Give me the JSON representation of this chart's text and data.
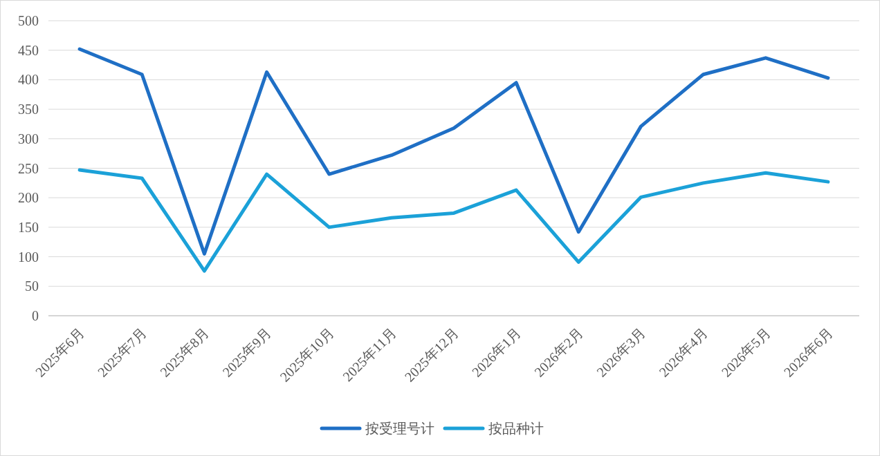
{
  "chart_data": {
    "type": "line",
    "categories": [
      "2025年6月",
      "2025年7月",
      "2025年8月",
      "2025年9月",
      "2025年10月",
      "2025年11月",
      "2025年12月",
      "2026年1月",
      "2026年2月",
      "2026年3月",
      "2026年4月",
      "2026年5月",
      "2026年6月"
    ],
    "series": [
      {
        "name": "按受理号计",
        "color": "#1f6fc5",
        "values": [
          452,
          409,
          105,
          413,
          240,
          272,
          318,
          395,
          142,
          321,
          409,
          437,
          403
        ]
      },
      {
        "name": "按品种计",
        "color": "#1ba1d8",
        "values": [
          247,
          233,
          76,
          240,
          150,
          166,
          174,
          213,
          91,
          201,
          225,
          242,
          227
        ]
      }
    ],
    "ylim": [
      0,
      500
    ],
    "yticks": [
      0,
      50,
      100,
      150,
      200,
      250,
      300,
      350,
      400,
      450,
      500
    ],
    "grid": "y",
    "legend": "bottom",
    "marker": "none",
    "line_style": "solid"
  }
}
